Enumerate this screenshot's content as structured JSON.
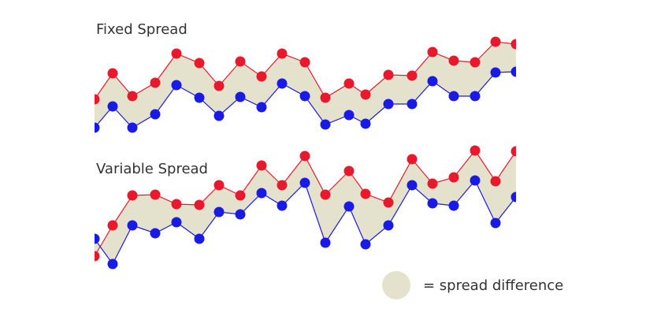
{
  "chart_data": [
    {
      "type": "line",
      "title": "Fixed Spread",
      "fill_color": "#e4e2cd",
      "x": [
        120,
        143,
        168,
        197,
        224,
        253,
        278,
        305,
        332,
        358,
        387,
        413,
        443,
        464,
        493,
        523,
        549,
        576,
        603,
        629,
        655
      ],
      "xlim": [
        120,
        655
      ],
      "ylim": [
        0,
        130
      ],
      "series": [
        {
          "color": "#e8192c",
          "values": [
            44,
            77,
            48,
            65,
            102,
            90,
            61,
            92,
            73,
            102,
            91,
            46,
            64,
            50,
            75,
            74,
            104,
            93,
            91,
            117,
            114
          ]
        },
        {
          "color": "#1a1ae6",
          "values": [
            8,
            35,
            8,
            25,
            62,
            46,
            23,
            47,
            34,
            64,
            48,
            12,
            24,
            13,
            38,
            38,
            67,
            48,
            48,
            78,
            79
          ]
        }
      ]
    },
    {
      "type": "line",
      "title": "Variable Spread",
      "fill_color": "#e4e2cd",
      "x": [
        120,
        143,
        168,
        197,
        224,
        253,
        278,
        305,
        332,
        358,
        387,
        413,
        443,
        464,
        493,
        523,
        549,
        576,
        603,
        629,
        655
      ],
      "xlim": [
        120,
        655
      ],
      "ylim": [
        0,
        160
      ],
      "series": [
        {
          "color": "#e8192c",
          "values": [
            20,
            59,
            97,
            98,
            86,
            85,
            110,
            97,
            135,
            110,
            147,
            98,
            128,
            99,
            88,
            143,
            112,
            120,
            154,
            115,
            153
          ]
        },
        {
          "color": "#1a1ae6",
          "values": [
            42,
            10,
            59,
            49,
            63,
            42,
            76,
            73,
            100,
            84,
            113,
            37,
            83,
            35,
            59,
            110,
            87,
            84,
            116,
            62,
            95
          ]
        }
      ]
    }
  ],
  "legend": {
    "label": "= spread difference",
    "color": "#e4e2cd"
  }
}
